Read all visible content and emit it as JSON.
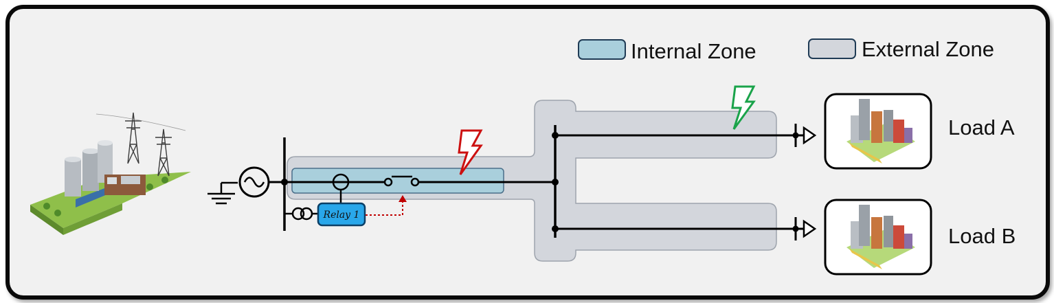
{
  "legend": {
    "internal_zone": "Internal Zone",
    "external_zone": "External Zone"
  },
  "relay": {
    "label": "Relay 1"
  },
  "loads": [
    {
      "label": "Load A"
    },
    {
      "label": "Load B"
    }
  ],
  "colors": {
    "internal_zone_fill": "#a9cfdc",
    "external_zone_fill": "#d3d6dc",
    "internal_fault": "#cc1010",
    "external_fault": "#1aa34a",
    "relay_fill": "#29a7ea",
    "trip_signal": "#c00000"
  },
  "icons": [
    "power-plant-icon",
    "ground-icon",
    "generator-icon",
    "current-transformer-icon",
    "breaker-icon",
    "fault-bolt-icon",
    "load-arrow-icon",
    "city-icon"
  ]
}
